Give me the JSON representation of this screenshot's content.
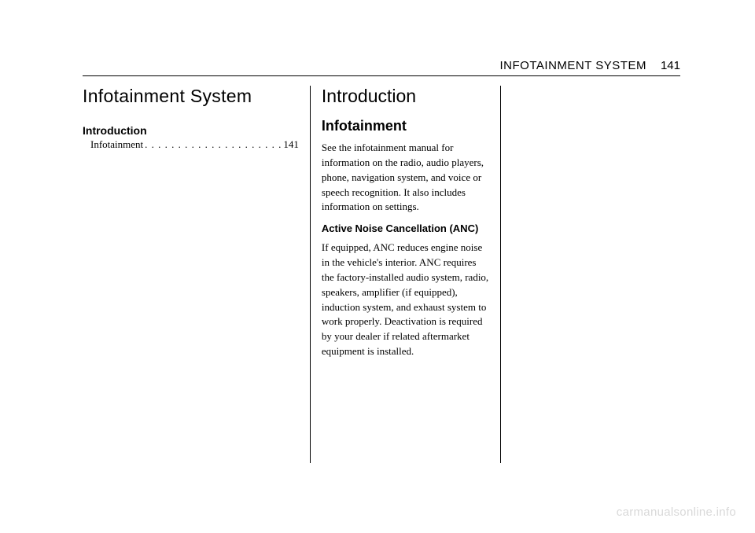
{
  "header": {
    "title": "INFOTAINMENT SYSTEM",
    "page": "141"
  },
  "col1": {
    "chapter_title": "Infotainment System",
    "toc_heading": "Introduction",
    "toc_entry_label": "Infotainment",
    "toc_entry_page": "141"
  },
  "col2": {
    "section_title": "Introduction",
    "subsection_title": "Infotainment",
    "para1": "See the infotainment manual for information on the radio, audio players, phone, navigation system, and voice or speech recognition. It also includes information on settings.",
    "sub_heading": "Active Noise Cancellation (ANC)",
    "para2": "If equipped, ANC reduces engine noise in the vehicle's interior. ANC requires the factory-installed audio system, radio, speakers, amplifier (if equipped), induction system, and exhaust system to work properly. Deactivation is required by your dealer if related aftermarket equipment is installed."
  },
  "watermark": "carmanualsonline.info"
}
